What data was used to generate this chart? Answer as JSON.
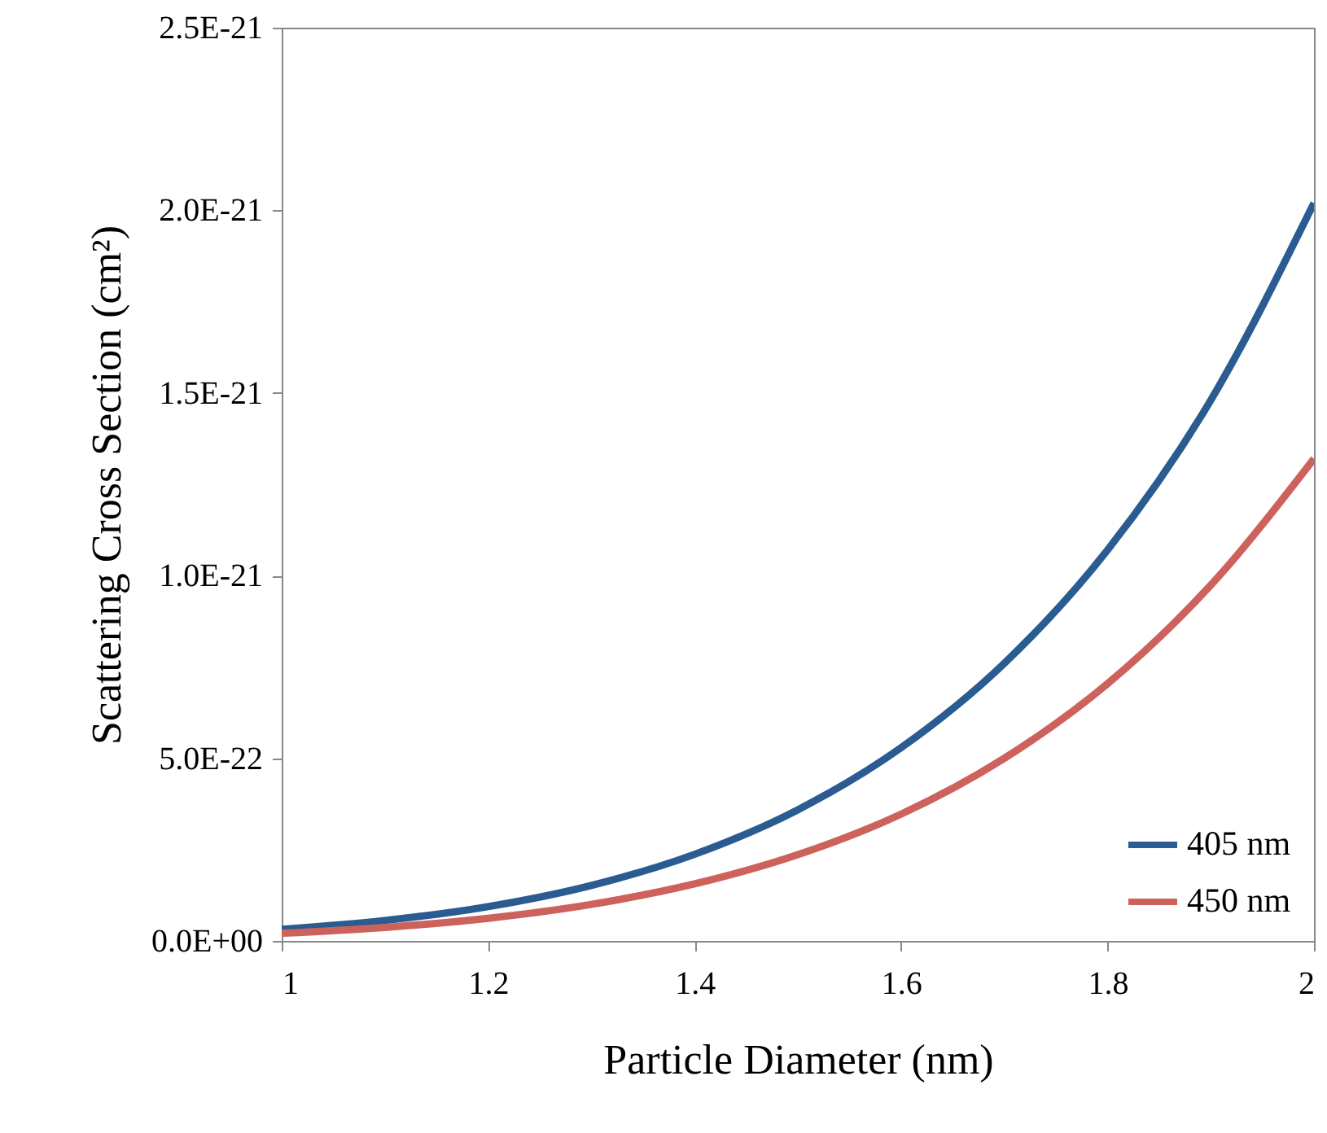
{
  "chart_data": {
    "type": "line",
    "xlabel": "Particle Diameter (nm)",
    "ylabel": "Scattering Cross Section (cm²)",
    "x": [
      1,
      1.1,
      1.2,
      1.3,
      1.4,
      1.5,
      1.6,
      1.7,
      1.8,
      1.9,
      2
    ],
    "series": [
      {
        "name": "405 nm",
        "color": "#2a5b91",
        "values": [
          3.2e-23,
          5.6e-23,
          9.4e-23,
          1.52e-22,
          2.37e-22,
          3.59e-22,
          5.29e-22,
          7.6e-22,
          1.07e-21,
          1.48e-21,
          2.02e-21
        ]
      },
      {
        "name": "450 nm",
        "color": "#cd625d",
        "values": [
          2.1e-23,
          3.7e-23,
          6.2e-23,
          1e-22,
          1.56e-22,
          2.36e-22,
          3.47e-22,
          5e-22,
          7.04e-22,
          9.74e-22,
          1.32e-21
        ]
      }
    ],
    "xlim": [
      1,
      2
    ],
    "xticks": [
      1,
      1.2,
      1.4,
      1.6,
      1.8,
      2
    ],
    "ylim": [
      0,
      2.5e-21
    ],
    "yticks": [
      {
        "value": 0,
        "label": "0.0E+00"
      },
      {
        "value": 5e-22,
        "label": "5.0E-22"
      },
      {
        "value": 1e-21,
        "label": "1.0E-21"
      },
      {
        "value": 1.5e-21,
        "label": "1.5E-21"
      },
      {
        "value": 2e-21,
        "label": "2.0E-21"
      },
      {
        "value": 2.5e-21,
        "label": "2.5E-21"
      }
    ],
    "grid": false,
    "legend": "bottom right",
    "marker": "none",
    "line_style": "solid"
  }
}
